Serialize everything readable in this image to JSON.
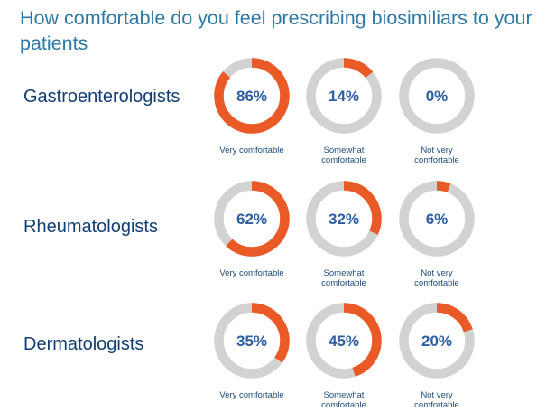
{
  "title": "How comfortable do you feel prescribing biosimiliars to your patients",
  "colors": {
    "accent": "#ea5a26",
    "track": "#d2d2d2",
    "value_text": "#2e5ea3",
    "label_text": "#123e73",
    "title_text": "#2e78a4"
  },
  "chart_data": {
    "type": "donut-grid",
    "title": "How comfortable do you feel prescribing biosimiliars to your patients",
    "categories": [
      "Very comfortable",
      "Somewhat comfortable",
      "Not very comfortable"
    ],
    "groups": [
      {
        "name": "Gastroenterologists",
        "values": [
          86,
          14,
          0
        ],
        "value_labels": [
          "86%",
          "14%",
          "0%"
        ],
        "captions": [
          "Very comfortable",
          "Somewhat comfortable",
          "Not very comfortable"
        ]
      },
      {
        "name": "Rheumatologists",
        "values": [
          62,
          32,
          6
        ],
        "value_labels": [
          "62%",
          "32%",
          "6%"
        ],
        "captions": [
          "Very comfortable",
          "Somewhat comfortable",
          "Not very comfortable"
        ]
      },
      {
        "name": "Dermatologists",
        "values": [
          35,
          45,
          20
        ],
        "value_labels": [
          "35%",
          "45%",
          "20%"
        ],
        "captions": [
          "Very comfortable",
          "Somewhat comfortable",
          "Not very comfortable"
        ]
      }
    ]
  }
}
